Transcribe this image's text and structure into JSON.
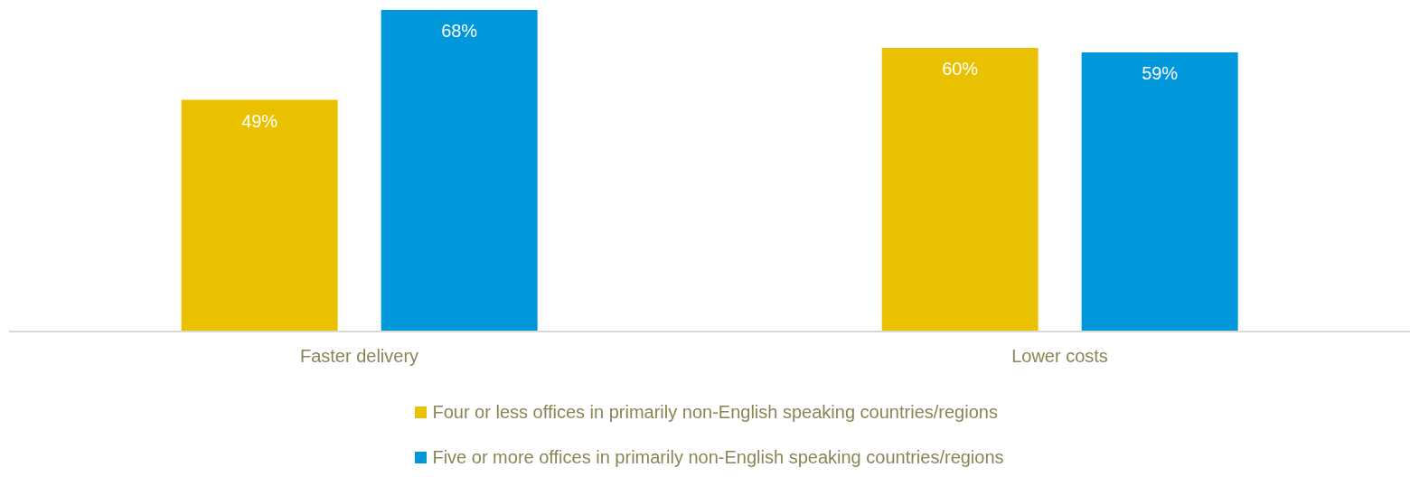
{
  "chart_data": {
    "type": "bar",
    "categories": [
      "Faster delivery",
      "Lower costs"
    ],
    "series": [
      {
        "name": "Four or less offices in primarily non-English speaking countries/regions",
        "color": "#eac100",
        "values": [
          49,
          60
        ],
        "value_labels": [
          "49%",
          "60%"
        ]
      },
      {
        "name": "Five or more offices in primarily non-English speaking countries/regions",
        "color": "#0097db",
        "values": [
          68,
          59
        ],
        "value_labels": [
          "68%",
          "59%"
        ]
      }
    ],
    "legend": "bottom",
    "grid": false
  }
}
